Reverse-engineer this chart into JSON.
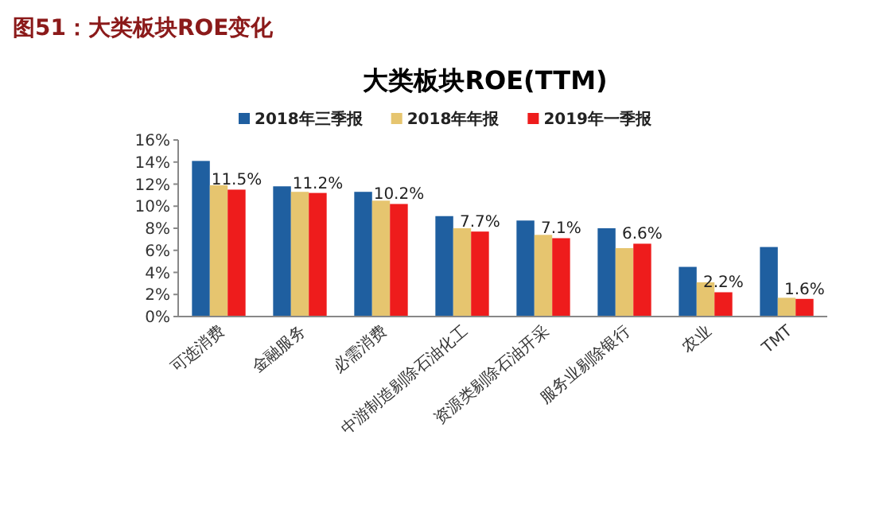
{
  "chart_data": {
    "type": "bar",
    "title": "大类板块ROE(TTM)",
    "annotations": [
      "图51：大类板块ROE变化"
    ],
    "categories": [
      "可选消费",
      "金融服务",
      "必需消费",
      "中游制造剔除石油化工",
      "资源类剔除石油开采",
      "服务业剔除银行",
      "农业",
      "TMT"
    ],
    "series": [
      {
        "name": "2018年三季报",
        "color": "#1f5fa0",
        "values": [
          14.1,
          11.8,
          11.3,
          9.1,
          8.7,
          8.0,
          4.5,
          6.3
        ]
      },
      {
        "name": "2018年年报",
        "color": "#e6c56f",
        "values": [
          11.9,
          11.3,
          10.5,
          8.0,
          7.4,
          6.2,
          3.1,
          1.7
        ]
      },
      {
        "name": "2019年一季报",
        "color": "#ee1c1c",
        "values": [
          11.5,
          11.2,
          10.2,
          7.7,
          7.1,
          6.6,
          2.2,
          1.6
        ],
        "value_labels": [
          "11.5%",
          "11.2%",
          "10.2%",
          "7.7%",
          "7.1%",
          "6.6%",
          "2.2%",
          "1.6%"
        ]
      }
    ],
    "ylim": [
      0,
      16
    ],
    "yticks": [
      {
        "value": 0,
        "label": "0%"
      },
      {
        "value": 2,
        "label": "2%"
      },
      {
        "value": 4,
        "label": "4%"
      },
      {
        "value": 6,
        "label": "6%"
      },
      {
        "value": 8,
        "label": "8%"
      },
      {
        "value": 10,
        "label": "10%"
      },
      {
        "value": 12,
        "label": "12%"
      },
      {
        "value": 14,
        "label": "14%"
      },
      {
        "value": 16,
        "label": "16%"
      }
    ],
    "grid": false,
    "legend": "top"
  }
}
